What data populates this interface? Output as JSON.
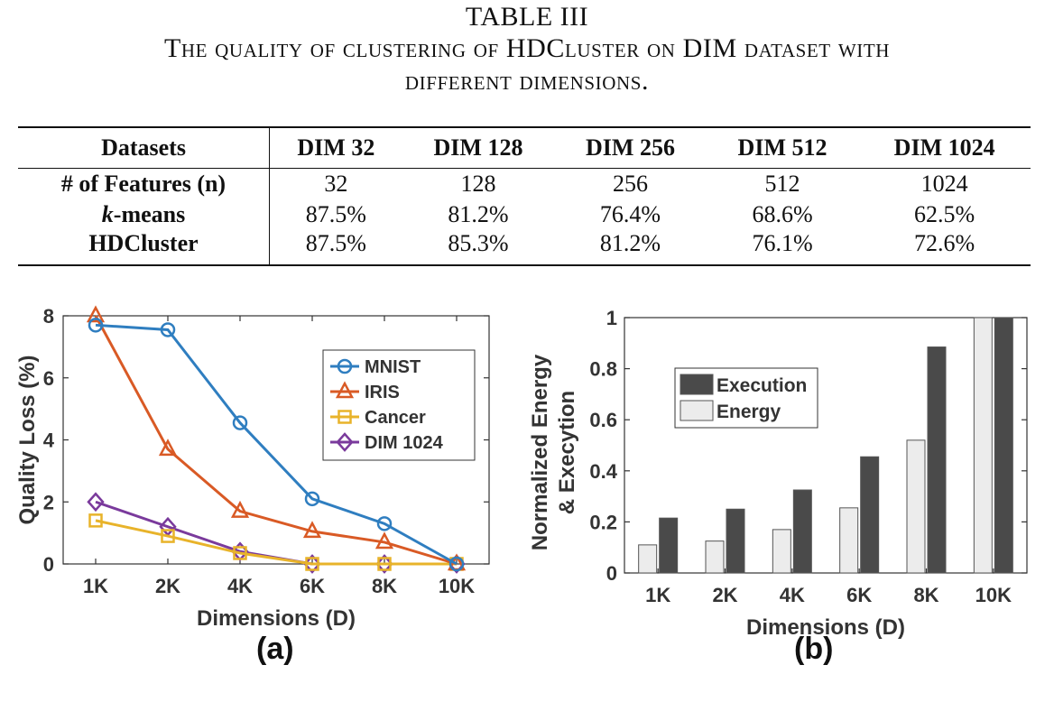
{
  "table": {
    "label": "TABLE III",
    "caption_line1": "The quality of clustering of HDCluster on DIM dataset with",
    "caption_line2": "different dimensions.",
    "headers": [
      "Datasets",
      "DIM 32",
      "DIM 128",
      "DIM 256",
      "DIM 512",
      "DIM 1024"
    ],
    "rows": [
      {
        "label": "# of Features (n)",
        "values": [
          "32",
          "128",
          "256",
          "512",
          "1024"
        ]
      },
      {
        "label_k": "k",
        "label_rest": "-means",
        "values": [
          "87.5%",
          "81.2%",
          "76.4%",
          "68.6%",
          "62.5%"
        ]
      },
      {
        "label": "HDCluster",
        "values": [
          "87.5%",
          "85.3%",
          "81.2%",
          "76.1%",
          "72.6%"
        ]
      }
    ]
  },
  "panel_labels": {
    "a": "(a)",
    "b": "(b)"
  },
  "chart_data": [
    {
      "type": "line",
      "xlabel": "Dimensions (D)",
      "ylabel": "Quality Loss (%)",
      "categories": [
        "1K",
        "2K",
        "4K",
        "6K",
        "8K",
        "10K"
      ],
      "ylim": [
        0,
        8
      ],
      "yticks": [
        0,
        2,
        4,
        6,
        8
      ],
      "grid": false,
      "legend_position": "top-right",
      "series": [
        {
          "name": "MNIST",
          "marker": "circle",
          "color": "#2f7ec0",
          "values": [
            7.7,
            7.55,
            4.55,
            2.1,
            1.3,
            0
          ]
        },
        {
          "name": "IRIS",
          "marker": "triangle",
          "color": "#d95a25",
          "values": [
            8.0,
            3.7,
            1.7,
            1.05,
            0.7,
            0
          ]
        },
        {
          "name": "Cancer",
          "marker": "square",
          "color": "#e8b32a",
          "values": [
            1.4,
            0.9,
            0.35,
            0,
            0,
            0
          ]
        },
        {
          "name": "DIM 1024",
          "marker": "diamond",
          "color": "#7a3a9c",
          "values": [
            2.0,
            1.2,
            0.4,
            0,
            0,
            0
          ]
        }
      ]
    },
    {
      "type": "bar",
      "xlabel": "Dimensions (D)",
      "ylabel_line1": "Normalized Energy",
      "ylabel_line2": "& Execytion",
      "categories": [
        "1K",
        "2K",
        "4K",
        "6K",
        "8K",
        "10K"
      ],
      "ylim": [
        0,
        1
      ],
      "yticks": [
        "0",
        "0.2",
        "0.4",
        "0.6",
        "0.8",
        "1"
      ],
      "ytick_values": [
        0,
        0.2,
        0.4,
        0.6,
        0.8,
        1
      ],
      "grid": false,
      "legend_position": "top-left",
      "series": [
        {
          "name": "Energy",
          "color": "#ececec",
          "values": [
            0.11,
            0.125,
            0.17,
            0.255,
            0.52,
            1.0
          ]
        },
        {
          "name": "Execution",
          "color": "#4a4a4a",
          "values": [
            0.215,
            0.25,
            0.325,
            0.455,
            0.885,
            1.0
          ]
        }
      ]
    }
  ]
}
